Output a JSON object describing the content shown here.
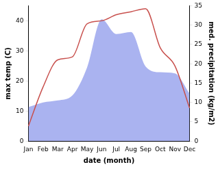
{
  "chart_data": {
    "type": "line",
    "x_label": "date (month)",
    "y_label": "max temp (C)",
    "y2_label": "med. precipitation (kg/m2)",
    "categories": [
      "Jan",
      "Feb",
      "Mar",
      "Apr",
      "May",
      "Jun",
      "Jul",
      "Aug",
      "Sep",
      "Oct",
      "Nov",
      "Dec"
    ],
    "series": [
      {
        "name": "med. precipitation",
        "type": "area",
        "axis": "y2",
        "color": "#aab3f0",
        "values": [
          8.8,
          10,
          10.5,
          11.8,
          19,
          31.5,
          27.7,
          28.2,
          19.3,
          17.8,
          17.5,
          12.3
        ]
      },
      {
        "name": "max temp",
        "type": "line",
        "color": "#c8504d",
        "values": [
          5,
          18,
          27,
          28,
          39,
          40,
          42,
          43,
          44,
          31,
          25,
          11
        ]
      }
    ],
    "ylim": [
      0,
      45
    ],
    "yticks": [
      0,
      10,
      20,
      30,
      40
    ],
    "y2lim": [
      0,
      35
    ],
    "y2ticks": [
      0,
      5,
      10,
      15,
      20,
      25,
      30,
      35
    ],
    "grid": false
  }
}
